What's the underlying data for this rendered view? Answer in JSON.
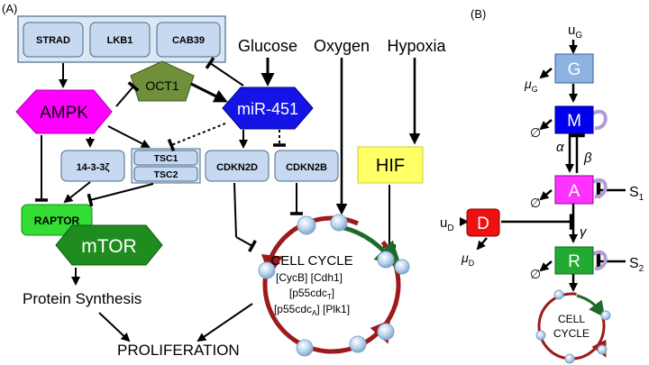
{
  "panel_a": {
    "label": "(A)",
    "complex": {
      "strad": "STRAD",
      "lkb1": "LKB1",
      "cab39": "CAB39"
    },
    "ampk": "AMPK",
    "oct1": "OCT1",
    "mir451": "miR-451",
    "glucose": "Glucose",
    "oxygen": "Oxygen",
    "hypoxia": "Hypoxia",
    "hif": "HIF",
    "p14": "14-3-3ζ",
    "tsc1": "TSC1",
    "tsc2": "TSC2",
    "cdkn2d": "CDKN2D",
    "cdkn2b": "CDKN2B",
    "raptor": "RAPTOR",
    "mtor": "mTOR",
    "protein_synthesis": "Protein Synthesis",
    "proliferation": "PROLIFERATION",
    "cell_cycle": {
      "title": "CELL CYCLE",
      "line1": "[CycB] [Cdh1]",
      "line2_a": "[p55cdc",
      "line2_sub": "T",
      "line2_b": "]",
      "line3_a": "[p55cdc",
      "line3_sub": "A",
      "line3_b": "] [Plk1]"
    }
  },
  "panel_b": {
    "label": "(B)",
    "u_g": "u",
    "u_g_sub": "G",
    "g": "G",
    "mu_g": "μ",
    "mu_g_sub": "G",
    "m": "M",
    "alpha": "α",
    "beta": "β",
    "a": "A",
    "s1": "S",
    "s1_sub": "1",
    "d": "D",
    "u_d": "u",
    "u_d_sub": "D",
    "mu_d": "μ",
    "mu_d_sub": "D",
    "gamma": "γ",
    "r": "R",
    "s2": "S",
    "s2_sub": "2",
    "empty_set": "∅",
    "cell_cycle_1": "CELL",
    "cell_cycle_2": "CYCLE"
  },
  "colors": {
    "ampk": "#ff00ff",
    "mir451": "#1414e6",
    "oct1": "#6f8f3a",
    "hif": "#ffff66",
    "raptor": "#33dd33",
    "mtor": "#1e8c1e",
    "protein_box": "#c6d9f1",
    "cycle_red": "#9c1a1a",
    "cycle_green": "#1e6a2a",
    "g_box": "#8db3e2",
    "m_box": "#0000ee",
    "a_box": "#ff33ff",
    "d_box": "#ee1111",
    "r_box": "#22aa33"
  }
}
